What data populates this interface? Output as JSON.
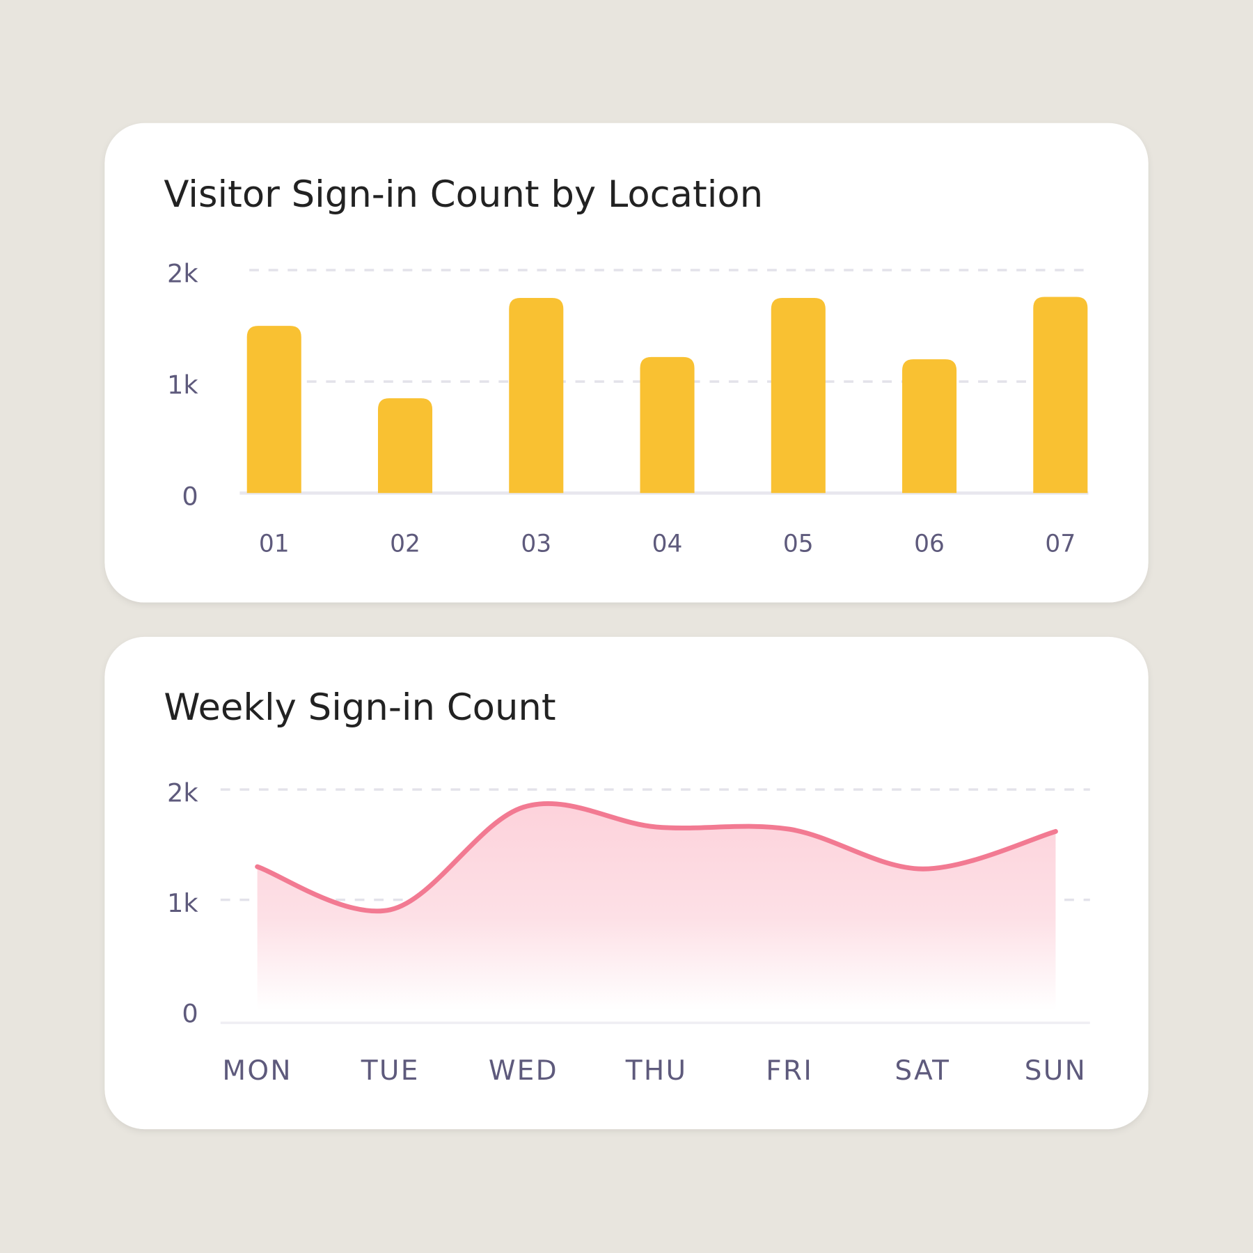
{
  "chart_data": [
    {
      "type": "bar",
      "title": "Visitor Sign-in Count by Location",
      "categories": [
        "01",
        "02",
        "03",
        "04",
        "05",
        "06",
        "07"
      ],
      "values": [
        1500,
        850,
        1750,
        1220,
        1750,
        1200,
        1760
      ],
      "color": "#f9c132",
      "ylim": [
        0,
        2000
      ],
      "yticks": [
        0,
        {
          "value": 1000,
          "label": "1k"
        },
        {
          "value": 2000,
          "label": "2k"
        }
      ],
      "grid": true
    },
    {
      "type": "line",
      "title": "Weekly Sign-in Count",
      "categories": [
        "MON",
        "TUE",
        "WED",
        "THU",
        "FRI",
        "SAT",
        "SUN"
      ],
      "values": [
        1300,
        910,
        1840,
        1660,
        1640,
        1280,
        1620
      ],
      "color": "#f27a92",
      "ylim": [
        0,
        2000
      ],
      "yticks": [
        0,
        {
          "value": 1000,
          "label": "1k"
        },
        {
          "value": 2000,
          "label": "2k"
        }
      ],
      "grid": true
    }
  ]
}
